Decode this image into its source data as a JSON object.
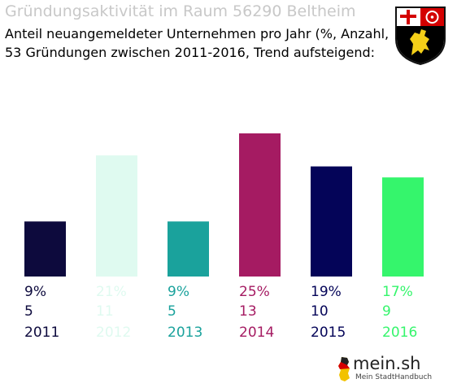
{
  "header": {
    "title": "Gründungsaktivität im Raum 56290 Beltheim",
    "subtitle1": "Anteil neuangemeldeter Unternehmen pro Jahr (%, Anzahl, Jahr)",
    "subtitle2": "53 Gründungen zwischen 2011-2016, Trend aufsteigend:"
  },
  "logo": {
    "name": "mein.sh",
    "tagline": "Mein StadtHandbuch"
  },
  "crest_icon": "rheinland-pfalz-coat-of-arms",
  "chart_data": {
    "type": "bar",
    "categories": [
      "2011",
      "2012",
      "2013",
      "2014",
      "2015",
      "2016"
    ],
    "percent_labels": [
      "9%",
      "21%",
      "9%",
      "25%",
      "19%",
      "17%"
    ],
    "counts": [
      5,
      11,
      5,
      13,
      10,
      9
    ],
    "colors": [
      "#0d0a3d",
      "#dffaf0",
      "#1aa29c",
      "#a51b62",
      "#040458",
      "#35f56c"
    ],
    "ylim": [
      0,
      13
    ],
    "grid": false,
    "legend": "none"
  }
}
